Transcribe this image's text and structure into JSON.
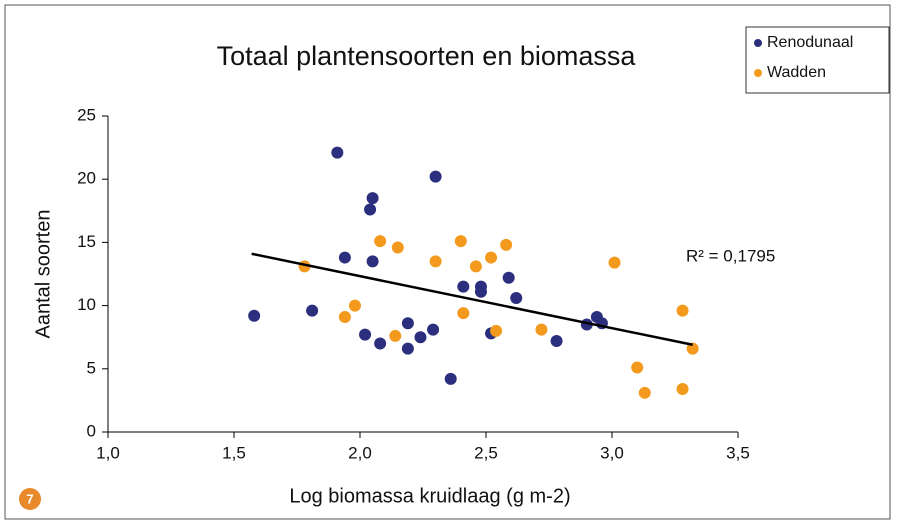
{
  "chart_data": {
    "type": "scatter",
    "title": "Totaal plantensoorten en biomassa",
    "x_label": "Log biomassa kruidlaag (g m-2)",
    "y_label": "Aantal soorten",
    "annotation": "R² = 0,1795",
    "badge": "7",
    "xlim": [
      1.0,
      3.5
    ],
    "xticks": [
      {
        "value": 1.0,
        "label": "1,0"
      },
      {
        "value": 1.5,
        "label": "1,5"
      },
      {
        "value": 2.0,
        "label": "2,0"
      },
      {
        "value": 2.5,
        "label": "2,5"
      },
      {
        "value": 3.0,
        "label": "3,0"
      },
      {
        "value": 3.5,
        "label": "3,5"
      }
    ],
    "ylim": [
      0,
      25
    ],
    "yticks": [
      0,
      5,
      10,
      15,
      20,
      25
    ],
    "grid": false,
    "legend": "top-right",
    "series": [
      {
        "name": "Renodunaal",
        "color": "#2b2f7e",
        "x": [
          1.58,
          1.81,
          1.91,
          1.94,
          2.05,
          2.04,
          2.05,
          2.02,
          2.08,
          2.19,
          2.19,
          2.3,
          2.24,
          2.36,
          2.29,
          2.41,
          2.48,
          2.48,
          2.52,
          2.59,
          2.62,
          2.78,
          2.9,
          2.94,
          2.96
        ],
        "values": [
          9.2,
          9.6,
          22.1,
          13.8,
          13.5,
          17.6,
          18.5,
          7.7,
          7.0,
          6.6,
          8.6,
          20.2,
          7.5,
          4.2,
          8.1,
          11.5,
          11.5,
          11.1,
          7.8,
          12.2,
          10.6,
          7.2,
          8.5,
          9.1,
          8.6
        ]
      },
      {
        "name": "Wadden",
        "color": "#f39a1e",
        "x": [
          1.78,
          1.94,
          1.98,
          2.08,
          2.14,
          2.15,
          2.3,
          2.4,
          2.41,
          2.46,
          2.52,
          2.58,
          2.54,
          2.72,
          3.01,
          3.1,
          3.13,
          3.28,
          3.28,
          3.32
        ],
        "values": [
          13.1,
          9.1,
          10.0,
          15.1,
          7.6,
          14.6,
          13.5,
          15.1,
          9.4,
          13.1,
          13.8,
          14.8,
          8.0,
          8.1,
          13.4,
          5.1,
          3.1,
          9.6,
          3.4,
          6.6
        ]
      }
    ],
    "trend": {
      "color": "#000000",
      "x": [
        1.57,
        3.32
      ],
      "values": [
        14.1,
        6.9
      ]
    }
  }
}
